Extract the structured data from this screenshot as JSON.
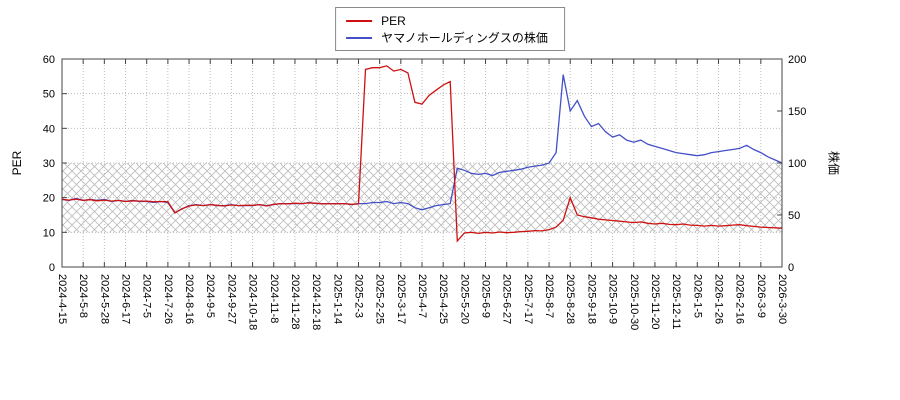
{
  "chart_data": {
    "type": "line",
    "title": "",
    "legend_position": "top-center",
    "grid": true,
    "left_axis": {
      "label": "PER",
      "min": 0,
      "max": 60,
      "ticks": [
        0,
        10,
        20,
        30,
        40,
        50,
        60
      ]
    },
    "right_axis": {
      "label": "株価",
      "min": 0,
      "max": 200,
      "ticks": [
        0,
        50,
        100,
        150,
        200
      ]
    },
    "band": {
      "axis": "left",
      "from": 10,
      "to": 30,
      "style": "crosshatch",
      "color": "#bbbbbb"
    },
    "x_ticks": [
      "2024-4-15",
      "2024-5-8",
      "2024-5-28",
      "2024-6-17",
      "2024-7-5",
      "2024-7-26",
      "2024-8-16",
      "2024-9-5",
      "2024-9-27",
      "2024-10-18",
      "2024-11-8",
      "2024-11-28",
      "2024-12-18",
      "2025-1-14",
      "2025-2-3",
      "2025-2-25",
      "2025-3-17",
      "2025-4-7",
      "2025-4-25",
      "2025-5-20",
      "2025-6-9",
      "2025-6-27",
      "2025-7-17",
      "2025-8-7",
      "2025-8-28",
      "2025-9-18",
      "2025-10-9",
      "2025-10-30",
      "2025-11-20",
      "2025-12-11",
      "2026-1-5",
      "2026-1-26",
      "2026-2-16",
      "2026-3-9",
      "2026-3-30"
    ],
    "series": [
      {
        "name": "PER",
        "axis": "left",
        "color": "#cc1111",
        "values": [
          19.5,
          19.3,
          19.6,
          19.2,
          19.4,
          19.1,
          19.3,
          19.0,
          19.2,
          18.9,
          19.1,
          19.0,
          19.0,
          18.8,
          18.9,
          18.8,
          15.6,
          16.8,
          17.6,
          17.9,
          17.7,
          18.0,
          17.8,
          17.6,
          17.9,
          17.7,
          17.8,
          17.8,
          18.0,
          17.6,
          18.1,
          18.3,
          18.2,
          18.4,
          18.3,
          18.5,
          18.4,
          18.2,
          18.3,
          18.2,
          18.3,
          18.1,
          18.2,
          57.0,
          57.5,
          57.5,
          58.0,
          56.5,
          57.0,
          56.0,
          47.5,
          47.0,
          49.5,
          51.0,
          52.5,
          53.5,
          7.5,
          9.8,
          10.0,
          9.7,
          10.0,
          9.8,
          10.1,
          9.9,
          10.0,
          10.2,
          10.3,
          10.5,
          10.4,
          10.8,
          11.5,
          13.5,
          20.0,
          15.0,
          14.5,
          14.2,
          13.8,
          13.6,
          13.4,
          13.2,
          13.0,
          12.8,
          13.0,
          12.6,
          12.4,
          12.6,
          12.3,
          12.2,
          12.4,
          12.1,
          12.0,
          11.8,
          12.0,
          11.8,
          11.9,
          12.1,
          12.2,
          11.9,
          11.7,
          11.5,
          11.4,
          11.3,
          11.2
        ]
      },
      {
        "name": "ヤマノホールディングスの株価",
        "axis": "right",
        "color": "#4450c8",
        "values": [
          65,
          64,
          66,
          64,
          65,
          64,
          65,
          63,
          64,
          63,
          64,
          63,
          63,
          62,
          63,
          62,
          52,
          56,
          59,
          60,
          59,
          60,
          59,
          59,
          60,
          59,
          59,
          59,
          60,
          59,
          60,
          61,
          61,
          61,
          61,
          62,
          61,
          61,
          61,
          61,
          61,
          60,
          61,
          61,
          62,
          62,
          63,
          61,
          62,
          61,
          57,
          55,
          57,
          59,
          60,
          61,
          95,
          93,
          90,
          89,
          90,
          88,
          91,
          92,
          93,
          94,
          96,
          97,
          98,
          100,
          110,
          185,
          150,
          160,
          145,
          135,
          138,
          130,
          125,
          127,
          122,
          120,
          122,
          118,
          116,
          114,
          112,
          110,
          109,
          108,
          107,
          108,
          110,
          111,
          112,
          113,
          114,
          117,
          113,
          110,
          106,
          103,
          100
        ]
      }
    ]
  }
}
